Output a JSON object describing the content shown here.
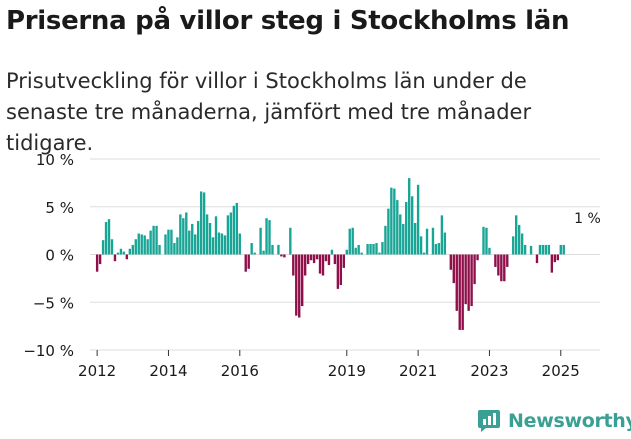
{
  "title": "Priserna på villor steg i Stockholms län",
  "subtitle": "Prisutveckling för villor i Stockholms län under de senaste tre månaderna, jämfört med tre månader tidigare.",
  "brand": {
    "name": "Newsworthy",
    "color": "#3aa094"
  },
  "colors": {
    "positive": "#18a596",
    "negative": "#8e0f4a",
    "grid": "#dddddd",
    "axis": "#333333"
  },
  "chart_data": {
    "type": "bar",
    "title": "Priserna på villor steg i Stockholms län",
    "xlabel": "",
    "ylabel": "",
    "ylim": [
      -10,
      10
    ],
    "y_ticks": [
      10,
      5,
      0,
      -5,
      -10
    ],
    "y_tick_labels": [
      "10 %",
      "5 %",
      "0 %",
      "−5 %",
      "−10 %"
    ],
    "x_ticks": [
      2012,
      2014,
      2016,
      2019,
      2021,
      2023,
      2025
    ],
    "x_tick_labels": [
      "2012",
      "2014",
      "2016",
      "2019",
      "2021",
      "2023",
      "2025"
    ],
    "x_range": [
      2011.8,
      2026.1
    ],
    "frequency": "monthly",
    "start": 2012.0,
    "annotation": {
      "label": "1 %",
      "x": 2025.75,
      "y": 1
    },
    "values": [
      -1.8,
      -1.0,
      1.5,
      3.4,
      3.7,
      1.6,
      -0.7,
      0.2,
      0.6,
      0.3,
      -0.5,
      0.6,
      1.0,
      1.6,
      2.2,
      2.1,
      2.0,
      1.6,
      2.5,
      3.0,
      3.0,
      1.0,
      0.0,
      2.1,
      2.6,
      2.6,
      1.2,
      1.8,
      4.2,
      3.8,
      4.4,
      2.5,
      3.2,
      2.1,
      3.5,
      6.6,
      6.5,
      4.2,
      3.3,
      1.8,
      4.0,
      2.3,
      2.2,
      2.0,
      4.1,
      4.4,
      5.1,
      5.4,
      2.2,
      0.0,
      -1.8,
      -1.5,
      1.2,
      0.2,
      0.0,
      2.8,
      0.4,
      3.8,
      3.6,
      1.0,
      0.0,
      1.0,
      -0.2,
      -0.3,
      0.0,
      2.8,
      -2.2,
      -6.4,
      -6.6,
      -5.4,
      -2.2,
      -1.0,
      -0.6,
      -0.9,
      -0.5,
      -2.0,
      -2.2,
      -0.7,
      -1.1,
      0.5,
      -1.0,
      -3.6,
      -3.2,
      -1.4,
      0.5,
      2.7,
      2.8,
      0.7,
      1.0,
      0.2,
      0.0,
      1.1,
      1.1,
      1.1,
      1.2,
      0.2,
      1.3,
      3.0,
      4.8,
      7.0,
      6.9,
      5.7,
      4.2,
      3.2,
      5.5,
      8.0,
      6.1,
      3.3,
      7.3,
      1.9,
      0.2,
      2.7,
      0.0,
      2.8,
      1.1,
      1.2,
      4.1,
      2.3,
      0.0,
      -1.6,
      -3.0,
      -5.9,
      -7.9,
      -7.9,
      -5.2,
      -5.9,
      -5.4,
      -3.1,
      -0.6,
      0.0,
      2.9,
      2.8,
      0.7,
      0.0,
      -1.3,
      -2.2,
      -2.8,
      -2.8,
      -1.3,
      0.0,
      1.9,
      4.1,
      3.1,
      2.2,
      1.0,
      0.0,
      0.9,
      0.0,
      -0.9,
      1.0,
      1.0,
      1.0,
      1.0,
      -1.9,
      -0.8,
      -0.6,
      1.0,
      1.0
    ]
  }
}
